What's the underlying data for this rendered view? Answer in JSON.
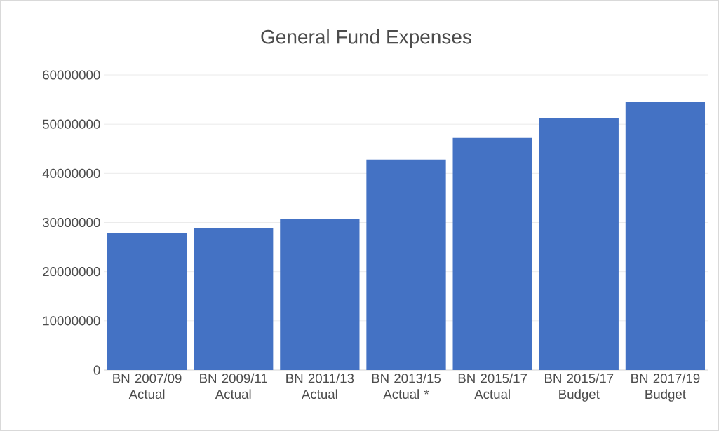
{
  "chart_data": {
    "type": "bar",
    "title": "General Fund Expenses",
    "categories": [
      "BN 2007/09 Actual",
      "BN 2009/11 Actual",
      "BN 2011/13 Actual",
      "BN 2013/15 Actual *",
      "BN 2015/17 Actual",
      "BN 2015/17 Budget",
      "BN 2017/19 Budget"
    ],
    "values": [
      27900000,
      28800000,
      30800000,
      42800000,
      47200000,
      51200000,
      54600000
    ],
    "color": "#4472c4",
    "ylim": [
      0,
      60000000
    ],
    "yticks": [
      0,
      10000000,
      20000000,
      30000000,
      40000000,
      50000000,
      60000000
    ],
    "grid": "y"
  }
}
